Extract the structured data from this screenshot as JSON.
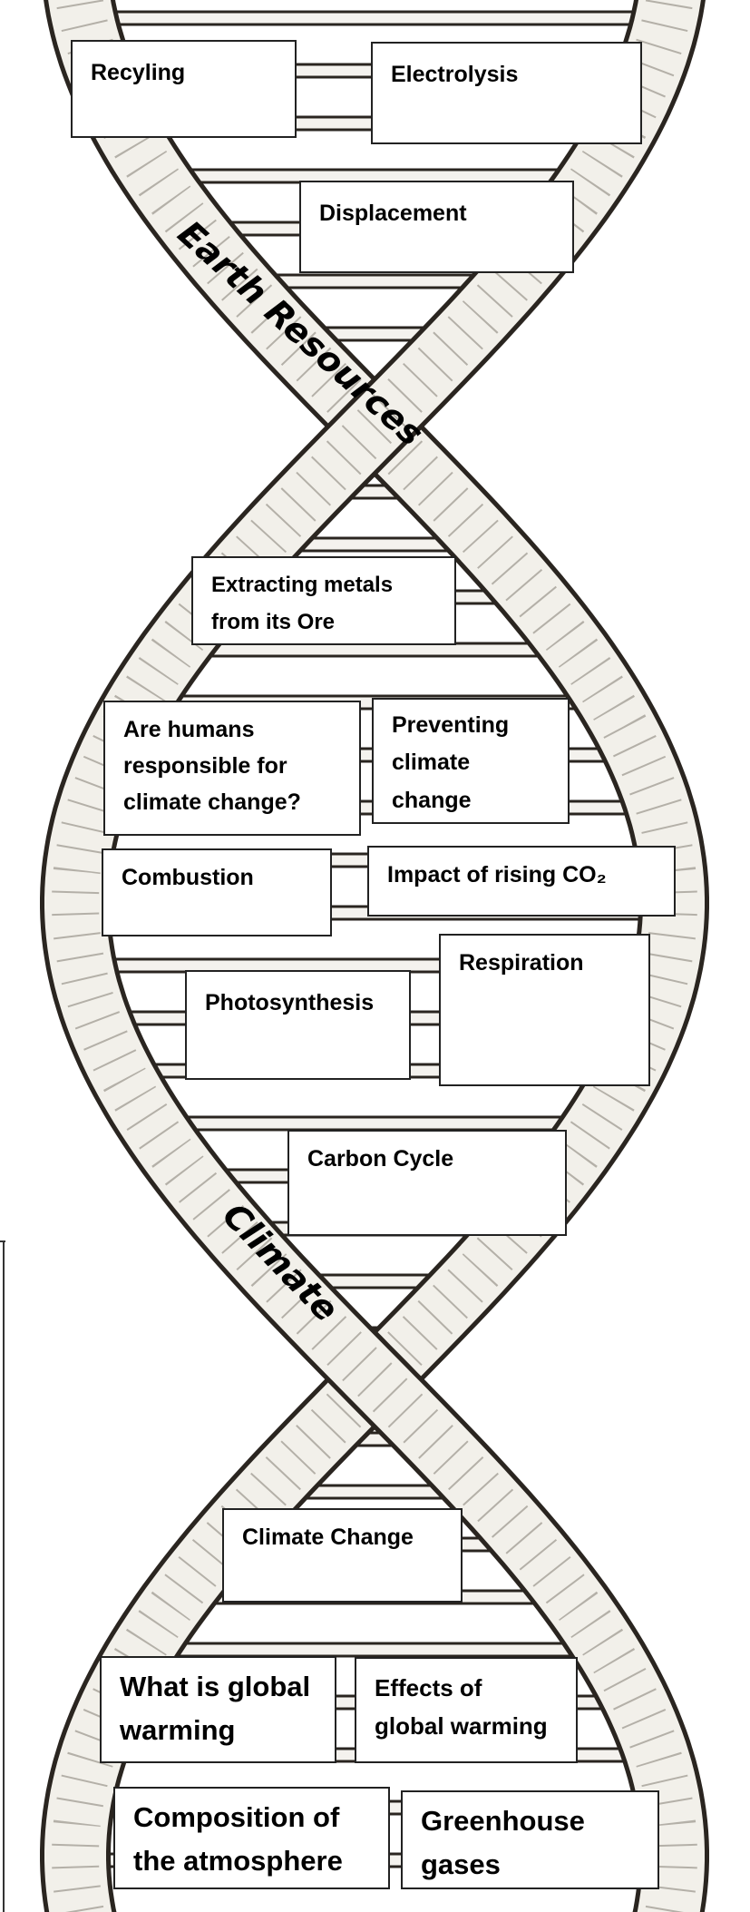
{
  "band_labels": [
    "Earth Resources",
    "Climate"
  ],
  "boxes": [
    {
      "label": "Recyling"
    },
    {
      "label": "Electrolysis"
    },
    {
      "label": "Displacement"
    },
    {
      "label": "Extracting metals from its Ore"
    },
    {
      "label": "Are humans responsible for climate change?"
    },
    {
      "label": "Preventing climate change"
    },
    {
      "label": "Combustion"
    },
    {
      "label": "Impact of rising CO₂"
    },
    {
      "label": "Photosynthesis"
    },
    {
      "label": "Respiration"
    },
    {
      "label": "Carbon Cycle"
    },
    {
      "label": "Climate Change"
    },
    {
      "label": "What is global warming"
    },
    {
      "label": "Effects of global warming"
    },
    {
      "label": "Composition of the atmosphere"
    },
    {
      "label": "Greenhouse gases"
    }
  ]
}
